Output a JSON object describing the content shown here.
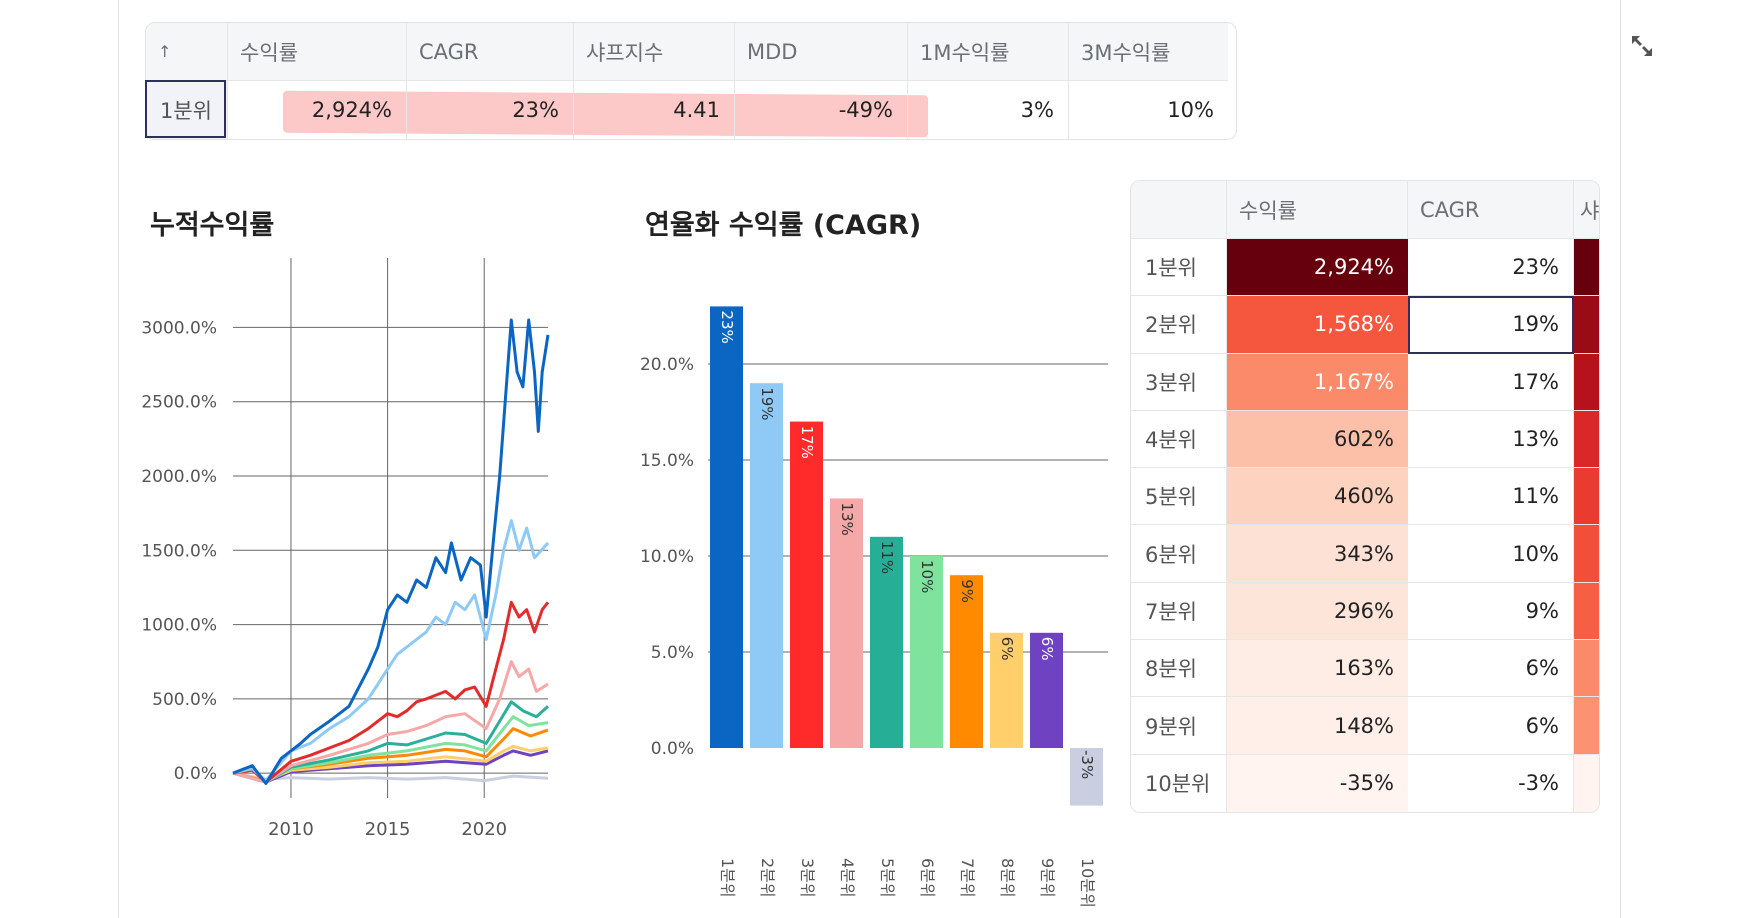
{
  "summary_table": {
    "sort_icon": "↑",
    "headers": [
      "수익률",
      "CAGR",
      "샤프지수",
      "MDD",
      "1M수익률",
      "3M수익률"
    ],
    "row": {
      "label": "1분위",
      "values": [
        "2,924%",
        "23%",
        "4.41",
        "-49%",
        "3%",
        "10%"
      ]
    }
  },
  "charts": {
    "cumulative_title": "누적수익률",
    "cagr_title": "연율화 수익률 (CAGR)"
  },
  "chart_data": [
    {
      "type": "line",
      "title": "누적수익률",
      "x_ticks": [
        "2010",
        "2015",
        "2020"
      ],
      "y_ticks": [
        "0.0%",
        "500.0%",
        "1000.0%",
        "1500.0%",
        "2000.0%",
        "2500.0%",
        "3000.0%"
      ],
      "ylim": [
        -100,
        3400
      ],
      "xlim": [
        2007.0,
        2023.3
      ],
      "grid": true,
      "series": [
        {
          "color": "#0a66c2",
          "points": [
            [
              2007,
              0
            ],
            [
              2008,
              50
            ],
            [
              2008.7,
              -70
            ],
            [
              2009.5,
              100
            ],
            [
              2010.5,
              200
            ],
            [
              2011,
              260
            ],
            [
              2012,
              350
            ],
            [
              2013,
              450
            ],
            [
              2014,
              700
            ],
            [
              2014.5,
              850
            ],
            [
              2015,
              1100
            ],
            [
              2015.5,
              1200
            ],
            [
              2016,
              1150
            ],
            [
              2016.5,
              1300
            ],
            [
              2017,
              1250
            ],
            [
              2017.5,
              1450
            ],
            [
              2018,
              1350
            ],
            [
              2018.3,
              1550
            ],
            [
              2018.8,
              1300
            ],
            [
              2019.3,
              1450
            ],
            [
              2019.8,
              1400
            ],
            [
              2020.1,
              1050
            ],
            [
              2020.5,
              1600
            ],
            [
              2020.8,
              2000
            ],
            [
              2021.2,
              2700
            ],
            [
              2021.4,
              3050
            ],
            [
              2021.7,
              2700
            ],
            [
              2022,
              2600
            ],
            [
              2022.3,
              3050
            ],
            [
              2022.6,
              2700
            ],
            [
              2022.8,
              2300
            ],
            [
              2023,
              2700
            ],
            [
              2023.3,
              2950
            ]
          ]
        },
        {
          "color": "#8fcaf6",
          "points": [
            [
              2007,
              0
            ],
            [
              2008,
              30
            ],
            [
              2008.7,
              -50
            ],
            [
              2010,
              150
            ],
            [
              2011,
              200
            ],
            [
              2012,
              300
            ],
            [
              2013,
              380
            ],
            [
              2014,
              500
            ],
            [
              2015,
              700
            ],
            [
              2015.5,
              800
            ],
            [
              2016,
              850
            ],
            [
              2016.5,
              900
            ],
            [
              2017,
              950
            ],
            [
              2017.5,
              1050
            ],
            [
              2018,
              1000
            ],
            [
              2018.5,
              1150
            ],
            [
              2019,
              1100
            ],
            [
              2019.5,
              1200
            ],
            [
              2020.1,
              900
            ],
            [
              2020.6,
              1200
            ],
            [
              2021,
              1500
            ],
            [
              2021.4,
              1700
            ],
            [
              2021.8,
              1500
            ],
            [
              2022.2,
              1650
            ],
            [
              2022.6,
              1450
            ],
            [
              2023.3,
              1550
            ]
          ]
        },
        {
          "color": "#e32b2b",
          "points": [
            [
              2007,
              0
            ],
            [
              2008,
              20
            ],
            [
              2008.7,
              -60
            ],
            [
              2010,
              80
            ],
            [
              2011,
              120
            ],
            [
              2012,
              170
            ],
            [
              2013,
              220
            ],
            [
              2014,
              300
            ],
            [
              2015,
              400
            ],
            [
              2015.5,
              380
            ],
            [
              2016,
              420
            ],
            [
              2016.5,
              480
            ],
            [
              2017,
              500
            ],
            [
              2018,
              550
            ],
            [
              2018.5,
              500
            ],
            [
              2019,
              560
            ],
            [
              2019.5,
              580
            ],
            [
              2020.1,
              450
            ],
            [
              2020.6,
              700
            ],
            [
              2021,
              900
            ],
            [
              2021.4,
              1150
            ],
            [
              2021.8,
              1050
            ],
            [
              2022.2,
              1100
            ],
            [
              2022.6,
              950
            ],
            [
              2023,
              1100
            ],
            [
              2023.3,
              1150
            ]
          ]
        },
        {
          "color": "#f6a8a8",
          "points": [
            [
              2007,
              0
            ],
            [
              2008.7,
              -60
            ],
            [
              2010,
              50
            ],
            [
              2012,
              120
            ],
            [
              2014,
              200
            ],
            [
              2015,
              260
            ],
            [
              2016,
              280
            ],
            [
              2017,
              320
            ],
            [
              2018,
              380
            ],
            [
              2019,
              400
            ],
            [
              2020.1,
              300
            ],
            [
              2020.8,
              500
            ],
            [
              2021.4,
              750
            ],
            [
              2021.8,
              650
            ],
            [
              2022.3,
              700
            ],
            [
              2022.7,
              550
            ],
            [
              2023.3,
              600
            ]
          ]
        },
        {
          "color": "#2ab09a",
          "points": [
            [
              2007,
              0
            ],
            [
              2008.7,
              -60
            ],
            [
              2010,
              40
            ],
            [
              2012,
              90
            ],
            [
              2014,
              150
            ],
            [
              2015,
              200
            ],
            [
              2016,
              190
            ],
            [
              2017,
              230
            ],
            [
              2018,
              270
            ],
            [
              2019,
              260
            ],
            [
              2020.1,
              200
            ],
            [
              2020.8,
              350
            ],
            [
              2021.4,
              480
            ],
            [
              2022,
              420
            ],
            [
              2022.7,
              380
            ],
            [
              2023.3,
              450
            ]
          ]
        },
        {
          "color": "#7fe39d",
          "points": [
            [
              2007,
              0
            ],
            [
              2008.7,
              -60
            ],
            [
              2010,
              30
            ],
            [
              2012,
              70
            ],
            [
              2014,
              120
            ],
            [
              2016,
              150
            ],
            [
              2018,
              200
            ],
            [
              2019,
              190
            ],
            [
              2020.1,
              150
            ],
            [
              2021,
              300
            ],
            [
              2021.5,
              380
            ],
            [
              2022.3,
              320
            ],
            [
              2023.3,
              340
            ]
          ]
        },
        {
          "color": "#ff8a00",
          "points": [
            [
              2007,
              0
            ],
            [
              2008.7,
              -55
            ],
            [
              2010,
              30
            ],
            [
              2012,
              60
            ],
            [
              2014,
              100
            ],
            [
              2016,
              120
            ],
            [
              2018,
              160
            ],
            [
              2019,
              150
            ],
            [
              2020.1,
              110
            ],
            [
              2021,
              230
            ],
            [
              2021.5,
              300
            ],
            [
              2022.4,
              250
            ],
            [
              2023.3,
              290
            ]
          ]
        },
        {
          "color": "#ffcf6b",
          "points": [
            [
              2007,
              0
            ],
            [
              2008.7,
              -50
            ],
            [
              2010,
              20
            ],
            [
              2012,
              40
            ],
            [
              2014,
              70
            ],
            [
              2016,
              80
            ],
            [
              2018,
              110
            ],
            [
              2020.1,
              80
            ],
            [
              2021,
              150
            ],
            [
              2021.5,
              180
            ],
            [
              2022.4,
              150
            ],
            [
              2023.3,
              170
            ]
          ]
        },
        {
          "color": "#6f42c1",
          "points": [
            [
              2007,
              0
            ],
            [
              2008.7,
              -60
            ],
            [
              2010,
              10
            ],
            [
              2012,
              30
            ],
            [
              2014,
              50
            ],
            [
              2016,
              60
            ],
            [
              2018,
              80
            ],
            [
              2020.1,
              60
            ],
            [
              2021,
              120
            ],
            [
              2021.5,
              150
            ],
            [
              2022.4,
              120
            ],
            [
              2023.3,
              150
            ]
          ]
        },
        {
          "color": "#c9cfe0",
          "points": [
            [
              2007,
              0
            ],
            [
              2008.7,
              -40
            ],
            [
              2010,
              -30
            ],
            [
              2012,
              -40
            ],
            [
              2014,
              -30
            ],
            [
              2016,
              -40
            ],
            [
              2018,
              -30
            ],
            [
              2020,
              -50
            ],
            [
              2021.5,
              -20
            ],
            [
              2023.3,
              -35
            ]
          ]
        }
      ]
    },
    {
      "type": "bar",
      "title": "연율화 수익률 (CAGR)",
      "categories": [
        "1분위",
        "2분위",
        "3분위",
        "4분위",
        "5분위",
        "6분위",
        "7분위",
        "8분위",
        "9분위",
        "10분위"
      ],
      "values": [
        23,
        19,
        17,
        13,
        11,
        10,
        9,
        6,
        6,
        -3
      ],
      "labels": [
        "23%",
        "19%",
        "17%",
        "13%",
        "11%",
        "10%",
        "9%",
        "6%",
        "6%",
        "-3%"
      ],
      "colors": [
        "#0a66c2",
        "#8fcaf6",
        "#ff2a2a",
        "#f6a8a8",
        "#27ae96",
        "#7fe39d",
        "#ff8a00",
        "#ffcf6b",
        "#6f42c1",
        "#c9cfe0"
      ],
      "label_colors": [
        "#ffffff",
        "#333333",
        "#ffffff",
        "#333333",
        "#333333",
        "#333333",
        "#333333",
        "#333333",
        "#ffffff",
        "#333333"
      ],
      "y_ticks": [
        "0.0%",
        "5.0%",
        "10.0%",
        "15.0%",
        "20.0%"
      ],
      "ylim": [
        -3,
        23
      ],
      "grid": true
    }
  ],
  "side_table": {
    "headers": [
      "수익률",
      "CAGR",
      "샤"
    ],
    "rows": [
      {
        "label": "1분위",
        "ret": "2,924%",
        "cagr": "23%",
        "ret_bg": "#67000d",
        "ret_fg": "#ffffff",
        "s_bg": "#67000d"
      },
      {
        "label": "2분위",
        "ret": "1,568%",
        "cagr": "19%",
        "ret_bg": "#f5573e",
        "ret_fg": "#ffffff",
        "s_bg": "#9a0c15"
      },
      {
        "label": "3분위",
        "ret": "1,167%",
        "cagr": "17%",
        "ret_bg": "#fb8a6a",
        "ret_fg": "#ffffff",
        "s_bg": "#b5121b"
      },
      {
        "label": "4분위",
        "ret": "602%",
        "cagr": "13%",
        "ret_bg": "#fcc0a8",
        "ret_fg": "#222222",
        "s_bg": "#d9272a"
      },
      {
        "label": "5분위",
        "ret": "460%",
        "cagr": "11%",
        "ret_bg": "#fdd3c0",
        "ret_fg": "#222222",
        "s_bg": "#ea3b31"
      },
      {
        "label": "6분위",
        "ret": "343%",
        "cagr": "10%",
        "ret_bg": "#fde1d5",
        "ret_fg": "#222222",
        "s_bg": "#f24f3b"
      },
      {
        "label": "7분위",
        "ret": "296%",
        "cagr": "9%",
        "ret_bg": "#fee5da",
        "ret_fg": "#222222",
        "s_bg": "#f75f45"
      },
      {
        "label": "8분위",
        "ret": "163%",
        "cagr": "6%",
        "ret_bg": "#feede5",
        "ret_fg": "#222222",
        "s_bg": "#fb8a6a"
      },
      {
        "label": "9분위",
        "ret": "148%",
        "cagr": "6%",
        "ret_bg": "#ffefe8",
        "ret_fg": "#222222",
        "s_bg": "#fc9272"
      },
      {
        "label": "10분위",
        "ret": "-35%",
        "cagr": "-3%",
        "ret_bg": "#fff4ef",
        "ret_fg": "#222222",
        "s_bg": "#fff4ef"
      }
    ]
  }
}
